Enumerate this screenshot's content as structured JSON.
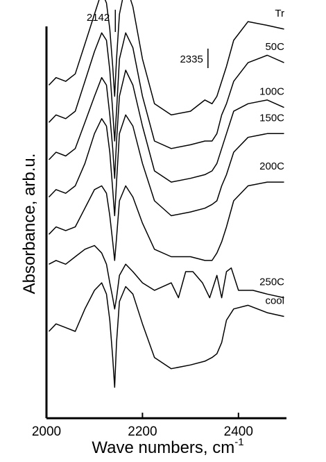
{
  "chart_data": {
    "type": "line",
    "title": "",
    "xlabel": "Wave numbers,   cm",
    "xlabel_superscript": "-1",
    "ylabel": "Absorbance,   arb.u.",
    "xlim": [
      2000,
      2500
    ],
    "xticks": [
      2000,
      2200,
      2400
    ],
    "grid": false,
    "legend": "none",
    "line_color": "#000000",
    "annotations": [
      {
        "label": "2142",
        "x": 2142
      },
      {
        "label": "2335",
        "x": 2335
      }
    ],
    "series": [
      {
        "name": "Tr",
        "x": [
          2005,
          2020,
          2040,
          2060,
          2080,
          2100,
          2115,
          2125,
          2132,
          2138,
          2142,
          2146,
          2152,
          2165,
          2180,
          2200,
          2225,
          2260,
          2300,
          2330,
          2345,
          2355,
          2365,
          2375,
          2390,
          2420,
          2460,
          2495
        ],
        "y": [
          0.93,
          0.95,
          0.94,
          0.96,
          1.04,
          1.12,
          1.18,
          1.15,
          1.08,
          0.98,
          0.9,
          1.0,
          1.12,
          1.2,
          1.14,
          1.0,
          0.88,
          0.85,
          0.86,
          0.89,
          0.88,
          0.9,
          0.94,
          0.98,
          1.05,
          1.1,
          1.09,
          1.08
        ]
      },
      {
        "name": "50C",
        "x": [
          2005,
          2020,
          2040,
          2060,
          2080,
          2100,
          2115,
          2125,
          2132,
          2138,
          2142,
          2146,
          2152,
          2165,
          2180,
          2200,
          2225,
          2260,
          2300,
          2330,
          2345,
          2355,
          2365,
          2375,
          2390,
          2420,
          2460,
          2495
        ],
        "y": [
          0.83,
          0.85,
          0.84,
          0.86,
          0.94,
          1.02,
          1.07,
          1.05,
          0.97,
          0.86,
          0.78,
          0.86,
          1.0,
          1.07,
          1.03,
          0.9,
          0.78,
          0.76,
          0.77,
          0.78,
          0.78,
          0.8,
          0.85,
          0.88,
          0.94,
          0.99,
          1.01,
          0.99
        ]
      },
      {
        "name": "100C",
        "x": [
          2005,
          2020,
          2040,
          2060,
          2080,
          2100,
          2115,
          2125,
          2132,
          2138,
          2142,
          2146,
          2152,
          2165,
          2180,
          2200,
          2225,
          2260,
          2300,
          2330,
          2345,
          2355,
          2365,
          2375,
          2390,
          2420,
          2460,
          2495
        ],
        "y": [
          0.73,
          0.75,
          0.74,
          0.76,
          0.83,
          0.9,
          0.95,
          0.93,
          0.85,
          0.76,
          0.68,
          0.78,
          0.9,
          0.97,
          0.93,
          0.82,
          0.7,
          0.67,
          0.68,
          0.69,
          0.7,
          0.72,
          0.76,
          0.8,
          0.86,
          0.88,
          0.89,
          0.87
        ]
      },
      {
        "name": "150C",
        "x": [
          2005,
          2020,
          2040,
          2060,
          2080,
          2100,
          2115,
          2125,
          2132,
          2138,
          2142,
          2146,
          2152,
          2165,
          2180,
          2200,
          2225,
          2260,
          2300,
          2330,
          2345,
          2355,
          2365,
          2375,
          2390,
          2420,
          2460,
          2495
        ],
        "y": [
          0.63,
          0.65,
          0.64,
          0.66,
          0.72,
          0.8,
          0.84,
          0.82,
          0.75,
          0.65,
          0.58,
          0.67,
          0.8,
          0.85,
          0.82,
          0.72,
          0.62,
          0.58,
          0.59,
          0.6,
          0.61,
          0.62,
          0.66,
          0.69,
          0.75,
          0.79,
          0.8,
          0.8
        ]
      },
      {
        "name": "200C",
        "x": [
          2005,
          2020,
          2040,
          2060,
          2080,
          2100,
          2115,
          2125,
          2132,
          2138,
          2142,
          2146,
          2152,
          2165,
          2180,
          2200,
          2225,
          2260,
          2300,
          2330,
          2345,
          2355,
          2365,
          2375,
          2390,
          2420,
          2460,
          2495
        ],
        "y": [
          0.53,
          0.55,
          0.54,
          0.55,
          0.6,
          0.65,
          0.66,
          0.64,
          0.58,
          0.51,
          0.46,
          0.52,
          0.62,
          0.66,
          0.63,
          0.56,
          0.49,
          0.47,
          0.47,
          0.46,
          0.46,
          0.48,
          0.51,
          0.55,
          0.62,
          0.66,
          0.67,
          0.67
        ]
      },
      {
        "name": "250C",
        "x": [
          2005,
          2020,
          2040,
          2060,
          2080,
          2100,
          2115,
          2125,
          2132,
          2138,
          2142,
          2146,
          2152,
          2165,
          2180,
          2200,
          2225,
          2260,
          2275,
          2290,
          2305,
          2325,
          2340,
          2355,
          2365,
          2375,
          2385,
          2400,
          2430,
          2460,
          2495
        ],
        "y": [
          0.45,
          0.46,
          0.45,
          0.47,
          0.49,
          0.5,
          0.48,
          0.45,
          0.4,
          0.36,
          0.33,
          0.36,
          0.42,
          0.45,
          0.43,
          0.4,
          0.38,
          0.4,
          0.36,
          0.43,
          0.43,
          0.4,
          0.36,
          0.42,
          0.36,
          0.43,
          0.44,
          0.38,
          0.38,
          0.37,
          0.36
        ]
      },
      {
        "name": "cool",
        "x": [
          2005,
          2020,
          2040,
          2060,
          2080,
          2100,
          2115,
          2125,
          2132,
          2138,
          2142,
          2146,
          2152,
          2165,
          2180,
          2200,
          2225,
          2260,
          2300,
          2330,
          2345,
          2355,
          2365,
          2375,
          2390,
          2420,
          2460,
          2495
        ],
        "y": [
          0.27,
          0.29,
          0.28,
          0.27,
          0.33,
          0.38,
          0.4,
          0.37,
          0.3,
          0.2,
          0.12,
          0.24,
          0.35,
          0.39,
          0.37,
          0.29,
          0.2,
          0.17,
          0.18,
          0.19,
          0.2,
          0.21,
          0.24,
          0.3,
          0.33,
          0.34,
          0.32,
          0.31
        ]
      }
    ]
  }
}
